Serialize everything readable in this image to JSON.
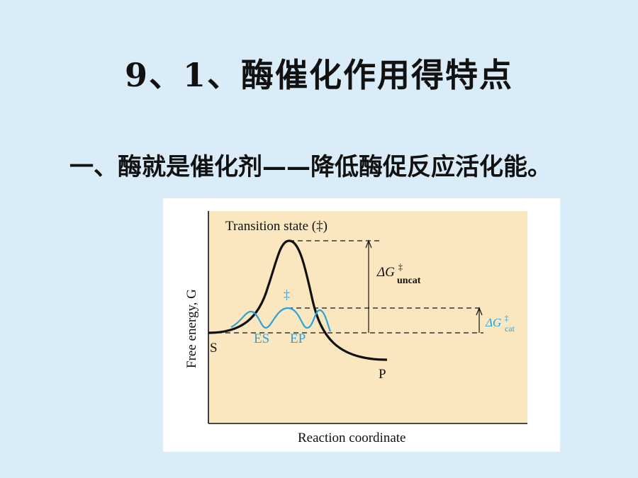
{
  "slide": {
    "title": "9、1、酶催化作用得特点",
    "subtitle": "一、酶就是催化剂——降低酶促反应活化能。"
  },
  "figure": {
    "transition_state_label": "Transition state (‡)",
    "y_axis_label": "Free energy, G",
    "x_axis_label": "Reaction coordinate",
    "substrate_label": "S",
    "product_label": "P",
    "es_label": "ES",
    "ep_label": "EP",
    "catalyzed_ts_mark": "‡",
    "delta_g_uncat": {
      "delta": "ΔG",
      "sup": "‡",
      "sub": "uncat"
    },
    "delta_g_cat": {
      "delta": "ΔG",
      "sup": "‡",
      "sub": "cat"
    },
    "colors": {
      "plot_background": "#fae7bf",
      "uncatalyzed_curve": "#111111",
      "catalyzed_curve": "#2aa2dc",
      "slide_background": "#d9ecf7"
    }
  }
}
